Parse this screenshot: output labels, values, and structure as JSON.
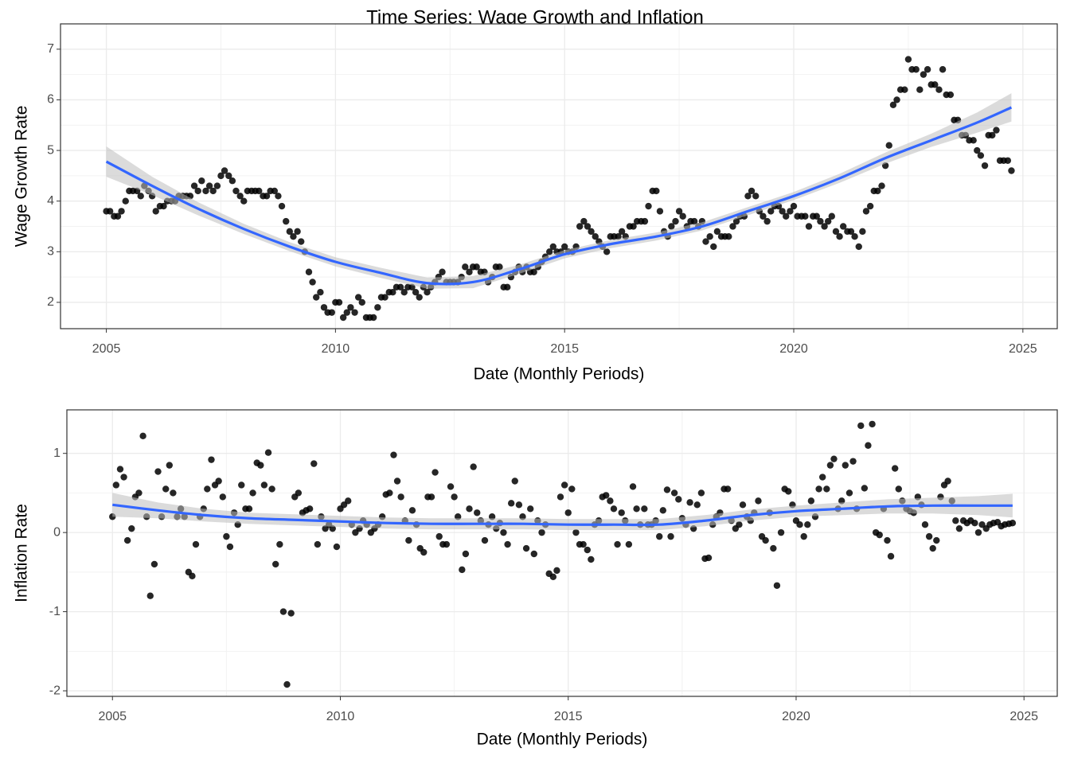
{
  "title": "Time Series: Wage Growth and Inflation",
  "chart_data": [
    {
      "type": "scatter",
      "ylabel": "Wage Growth Rate",
      "xlabel": "Date (Monthly Periods)",
      "point_color": "#000000",
      "grid": true,
      "xlim": [
        2004,
        2025.75
      ],
      "ylim": [
        1.48,
        7.5
      ],
      "xticks": [
        2005,
        2010,
        2015,
        2020,
        2025
      ],
      "yticks": [
        2,
        3,
        4,
        5,
        6,
        7
      ],
      "x": [
        2005,
        2005.08,
        2005.17,
        2005.25,
        2005.33,
        2005.42,
        2005.5,
        2005.58,
        2005.67,
        2005.75,
        2005.83,
        2005.92,
        2006,
        2006.08,
        2006.17,
        2006.25,
        2006.33,
        2006.42,
        2006.5,
        2006.58,
        2006.67,
        2006.75,
        2006.83,
        2006.92,
        2007,
        2007.08,
        2007.17,
        2007.25,
        2007.33,
        2007.42,
        2007.5,
        2007.58,
        2007.67,
        2007.75,
        2007.83,
        2007.92,
        2008,
        2008.08,
        2008.17,
        2008.25,
        2008.33,
        2008.42,
        2008.5,
        2008.58,
        2008.67,
        2008.75,
        2008.83,
        2008.92,
        2009,
        2009.08,
        2009.17,
        2009.25,
        2009.33,
        2009.42,
        2009.5,
        2009.58,
        2009.67,
        2009.75,
        2009.83,
        2009.92,
        2010,
        2010.08,
        2010.17,
        2010.25,
        2010.33,
        2010.42,
        2010.5,
        2010.58,
        2010.67,
        2010.75,
        2010.83,
        2010.92,
        2011,
        2011.08,
        2011.17,
        2011.25,
        2011.33,
        2011.42,
        2011.5,
        2011.58,
        2011.67,
        2011.75,
        2011.83,
        2011.92,
        2012,
        2012.08,
        2012.17,
        2012.25,
        2012.33,
        2012.42,
        2012.5,
        2012.58,
        2012.67,
        2012.75,
        2012.83,
        2012.92,
        2013,
        2013.08,
        2013.17,
        2013.25,
        2013.33,
        2013.42,
        2013.5,
        2013.58,
        2013.67,
        2013.75,
        2013.83,
        2013.92,
        2014,
        2014.08,
        2014.17,
        2014.25,
        2014.33,
        2014.42,
        2014.5,
        2014.58,
        2014.67,
        2014.75,
        2014.83,
        2014.92,
        2015,
        2015.08,
        2015.17,
        2015.25,
        2015.33,
        2015.42,
        2015.5,
        2015.58,
        2015.67,
        2015.75,
        2015.83,
        2015.92,
        2016,
        2016.08,
        2016.17,
        2016.25,
        2016.33,
        2016.42,
        2016.5,
        2016.58,
        2016.67,
        2016.75,
        2016.83,
        2016.92,
        2017,
        2017.08,
        2017.17,
        2017.25,
        2017.33,
        2017.42,
        2017.5,
        2017.58,
        2017.67,
        2017.75,
        2017.83,
        2017.92,
        2018,
        2018.08,
        2018.17,
        2018.25,
        2018.33,
        2018.42,
        2018.5,
        2018.58,
        2018.67,
        2018.75,
        2018.83,
        2018.92,
        2019,
        2019.08,
        2019.17,
        2019.25,
        2019.33,
        2019.42,
        2019.5,
        2019.58,
        2019.67,
        2019.75,
        2019.83,
        2019.92,
        2020,
        2020.08,
        2020.17,
        2020.25,
        2020.33,
        2020.42,
        2020.5,
        2020.58,
        2020.67,
        2020.75,
        2020.83,
        2020.92,
        2021,
        2021.08,
        2021.17,
        2021.25,
        2021.33,
        2021.42,
        2021.5,
        2021.58,
        2021.67,
        2021.75,
        2021.83,
        2021.92,
        2022,
        2022.08,
        2022.17,
        2022.25,
        2022.33,
        2022.42,
        2022.5,
        2022.58,
        2022.67,
        2022.75,
        2022.83,
        2022.92,
        2023,
        2023.08,
        2023.17,
        2023.25,
        2023.33,
        2023.42,
        2023.5,
        2023.58,
        2023.67,
        2023.75,
        2023.83,
        2023.92,
        2024,
        2024.08,
        2024.17,
        2024.25,
        2024.33,
        2024.42,
        2024.5,
        2024.58,
        2024.67,
        2024.75
      ],
      "values": [
        3.8,
        3.8,
        3.7,
        3.7,
        3.8,
        4.0,
        4.2,
        4.2,
        4.2,
        4.1,
        4.3,
        4.2,
        4.1,
        3.8,
        3.9,
        3.9,
        4.0,
        4.0,
        4.0,
        4.1,
        4.1,
        4.1,
        4.1,
        4.3,
        4.2,
        4.4,
        4.2,
        4.3,
        4.2,
        4.3,
        4.5,
        4.6,
        4.5,
        4.4,
        4.2,
        4.1,
        4.0,
        4.2,
        4.2,
        4.2,
        4.2,
        4.1,
        4.1,
        4.2,
        4.2,
        4.1,
        3.9,
        3.6,
        3.4,
        3.3,
        3.4,
        3.2,
        3.0,
        2.6,
        2.4,
        2.1,
        2.2,
        1.9,
        1.8,
        1.8,
        2.0,
        2.0,
        1.7,
        1.8,
        1.9,
        1.8,
        2.1,
        2.0,
        1.7,
        1.7,
        1.7,
        1.9,
        2.1,
        2.1,
        2.2,
        2.2,
        2.3,
        2.3,
        2.2,
        2.3,
        2.3,
        2.2,
        2.1,
        2.3,
        2.2,
        2.3,
        2.4,
        2.5,
        2.6,
        2.4,
        2.4,
        2.4,
        2.4,
        2.5,
        2.7,
        2.6,
        2.7,
        2.7,
        2.6,
        2.6,
        2.4,
        2.5,
        2.7,
        2.7,
        2.3,
        2.3,
        2.5,
        2.6,
        2.7,
        2.6,
        2.7,
        2.6,
        2.6,
        2.7,
        2.8,
        2.9,
        3.0,
        3.1,
        3.0,
        3.0,
        3.1,
        3.0,
        3.0,
        3.1,
        3.5,
        3.6,
        3.5,
        3.4,
        3.3,
        3.2,
        3.1,
        3.0,
        3.3,
        3.3,
        3.3,
        3.4,
        3.3,
        3.5,
        3.5,
        3.6,
        3.6,
        3.6,
        3.9,
        4.2,
        4.2,
        3.8,
        3.4,
        3.3,
        3.5,
        3.6,
        3.8,
        3.7,
        3.5,
        3.6,
        3.6,
        3.5,
        3.6,
        3.2,
        3.3,
        3.1,
        3.4,
        3.3,
        3.3,
        3.3,
        3.5,
        3.6,
        3.7,
        3.7,
        4.1,
        4.2,
        4.1,
        3.8,
        3.7,
        3.6,
        3.8,
        3.9,
        3.9,
        3.8,
        3.7,
        3.8,
        3.9,
        3.7,
        3.7,
        3.7,
        3.5,
        3.7,
        3.7,
        3.6,
        3.5,
        3.6,
        3.7,
        3.4,
        3.3,
        3.5,
        3.4,
        3.4,
        3.3,
        3.1,
        3.4,
        3.8,
        3.9,
        4.2,
        4.2,
        4.3,
        4.7,
        5.1,
        5.9,
        6.0,
        6.2,
        6.2,
        6.8,
        6.6,
        6.6,
        6.2,
        6.5,
        6.6,
        6.3,
        6.3,
        6.2,
        6.6,
        6.1,
        6.1,
        5.6,
        5.6,
        5.3,
        5.3,
        5.2,
        5.2,
        5.0,
        4.9,
        4.7,
        5.3,
        5.3,
        5.4,
        4.8,
        4.8,
        4.8,
        4.6
      ],
      "trend": {
        "color": "#3366ff",
        "band_color": "#bdbdbd",
        "x": [
          2005,
          2006,
          2007,
          2008,
          2009,
          2010,
          2011,
          2012,
          2013,
          2014,
          2015,
          2016,
          2017,
          2018,
          2019,
          2020,
          2021,
          2022,
          2023,
          2024,
          2024.75
        ],
        "values": [
          4.78,
          4.3,
          3.85,
          3.45,
          3.1,
          2.8,
          2.58,
          2.38,
          2.4,
          2.65,
          2.95,
          3.15,
          3.3,
          3.5,
          3.8,
          4.1,
          4.45,
          4.85,
          5.2,
          5.55,
          5.85
        ],
        "lower": [
          4.48,
          4.12,
          3.72,
          3.35,
          3.01,
          2.71,
          2.48,
          2.27,
          2.28,
          2.56,
          2.87,
          3.07,
          3.22,
          3.42,
          3.72,
          4.02,
          4.36,
          4.74,
          5.07,
          5.35,
          5.57
        ],
        "upper": [
          5.08,
          4.48,
          3.98,
          3.55,
          3.19,
          2.89,
          2.68,
          2.49,
          2.52,
          2.74,
          3.03,
          3.23,
          3.38,
          3.58,
          3.88,
          4.18,
          4.54,
          4.96,
          5.33,
          5.75,
          6.13
        ]
      }
    },
    {
      "type": "scatter",
      "ylabel": "Inflation Rate",
      "xlabel": "Date (Monthly Periods)",
      "point_color": "#000000",
      "grid": true,
      "xlim": [
        2004,
        2025.73
      ],
      "ylim": [
        -2.07,
        1.55
      ],
      "xticks": [
        2005,
        2010,
        2015,
        2020,
        2025
      ],
      "yticks": [
        -2,
        -1,
        0,
        1
      ],
      "x": [
        2005,
        2005.08,
        2005.17,
        2005.25,
        2005.33,
        2005.42,
        2005.5,
        2005.58,
        2005.67,
        2005.75,
        2005.83,
        2005.92,
        2006,
        2006.08,
        2006.17,
        2006.25,
        2006.33,
        2006.42,
        2006.5,
        2006.58,
        2006.67,
        2006.75,
        2006.83,
        2006.92,
        2007,
        2007.08,
        2007.17,
        2007.25,
        2007.33,
        2007.42,
        2007.5,
        2007.58,
        2007.67,
        2007.75,
        2007.83,
        2007.92,
        2008,
        2008.08,
        2008.17,
        2008.25,
        2008.33,
        2008.42,
        2008.5,
        2008.58,
        2008.67,
        2008.75,
        2008.83,
        2008.92,
        2009,
        2009.08,
        2009.17,
        2009.25,
        2009.33,
        2009.42,
        2009.5,
        2009.58,
        2009.67,
        2009.75,
        2009.83,
        2009.92,
        2010,
        2010.08,
        2010.17,
        2010.25,
        2010.33,
        2010.42,
        2010.5,
        2010.58,
        2010.67,
        2010.75,
        2010.83,
        2010.92,
        2011,
        2011.08,
        2011.17,
        2011.25,
        2011.33,
        2011.42,
        2011.5,
        2011.58,
        2011.67,
        2011.75,
        2011.83,
        2011.92,
        2012,
        2012.08,
        2012.17,
        2012.25,
        2012.33,
        2012.42,
        2012.5,
        2012.58,
        2012.67,
        2012.75,
        2012.83,
        2012.92,
        2013,
        2013.08,
        2013.17,
        2013.25,
        2013.33,
        2013.42,
        2013.5,
        2013.58,
        2013.67,
        2013.75,
        2013.83,
        2013.92,
        2014,
        2014.08,
        2014.17,
        2014.25,
        2014.33,
        2014.42,
        2014.5,
        2014.58,
        2014.67,
        2014.75,
        2014.83,
        2014.92,
        2015,
        2015.08,
        2015.17,
        2015.25,
        2015.33,
        2015.42,
        2015.5,
        2015.58,
        2015.67,
        2015.75,
        2015.83,
        2015.92,
        2016,
        2016.08,
        2016.17,
        2016.25,
        2016.33,
        2016.42,
        2016.5,
        2016.58,
        2016.67,
        2016.75,
        2016.83,
        2016.92,
        2017,
        2017.08,
        2017.17,
        2017.25,
        2017.33,
        2017.42,
        2017.5,
        2017.58,
        2017.67,
        2017.75,
        2017.83,
        2017.92,
        2018,
        2018.08,
        2018.17,
        2018.25,
        2018.33,
        2018.42,
        2018.5,
        2018.58,
        2018.67,
        2018.75,
        2018.83,
        2018.92,
        2019,
        2019.08,
        2019.17,
        2019.25,
        2019.33,
        2019.42,
        2019.5,
        2019.58,
        2019.67,
        2019.75,
        2019.83,
        2019.92,
        2020,
        2020.08,
        2020.17,
        2020.25,
        2020.33,
        2020.42,
        2020.5,
        2020.58,
        2020.67,
        2020.75,
        2020.83,
        2020.92,
        2021,
        2021.08,
        2021.17,
        2021.25,
        2021.33,
        2021.42,
        2021.5,
        2021.58,
        2021.67,
        2021.75,
        2021.83,
        2021.92,
        2022,
        2022.08,
        2022.17,
        2022.25,
        2022.33,
        2022.42,
        2022.5,
        2022.58,
        2022.67,
        2022.75,
        2022.83,
        2022.92,
        2023,
        2023.08,
        2023.17,
        2023.25,
        2023.33,
        2023.42,
        2023.5,
        2023.58,
        2023.67,
        2023.75,
        2023.83,
        2023.92,
        2024,
        2024.08,
        2024.17,
        2024.25,
        2024.33,
        2024.42,
        2024.5,
        2024.58,
        2024.67,
        2024.75
      ],
      "values": [
        0.2,
        0.6,
        0.8,
        0.7,
        -0.1,
        0.05,
        0.45,
        0.5,
        1.22,
        0.2,
        -0.8,
        -0.4,
        0.77,
        0.2,
        0.55,
        0.85,
        0.5,
        0.2,
        0.3,
        0.2,
        -0.5,
        -0.55,
        -0.15,
        0.2,
        0.3,
        0.55,
        0.92,
        0.6,
        0.65,
        0.45,
        -0.05,
        -0.18,
        0.25,
        0.1,
        0.6,
        0.3,
        0.3,
        0.5,
        0.88,
        0.85,
        0.6,
        1.01,
        0.55,
        -0.4,
        -0.15,
        -1.0,
        -1.92,
        -1.02,
        0.45,
        0.5,
        0.25,
        0.28,
        0.3,
        0.87,
        -0.15,
        0.2,
        0.05,
        0.1,
        0.05,
        -0.18,
        0.3,
        0.35,
        0.4,
        0.1,
        0.0,
        0.05,
        0.15,
        0.1,
        0.0,
        0.05,
        0.1,
        0.2,
        0.48,
        0.5,
        0.98,
        0.65,
        0.45,
        0.15,
        -0.1,
        0.28,
        0.1,
        -0.2,
        -0.25,
        0.45,
        0.45,
        0.76,
        -0.05,
        -0.15,
        -0.15,
        0.58,
        0.45,
        0.2,
        -0.47,
        -0.27,
        0.3,
        0.83,
        0.25,
        0.15,
        -0.1,
        0.1,
        0.2,
        0.05,
        0.12,
        0.0,
        -0.15,
        0.37,
        0.65,
        0.35,
        0.2,
        -0.2,
        0.3,
        -0.27,
        0.15,
        0.0,
        0.1,
        -0.52,
        -0.56,
        -0.48,
        0.45,
        0.6,
        0.25,
        0.55,
        0.0,
        -0.15,
        -0.15,
        -0.22,
        -0.34,
        0.1,
        0.15,
        0.45,
        0.47,
        0.4,
        0.3,
        -0.15,
        0.25,
        0.15,
        -0.15,
        0.58,
        0.3,
        0.1,
        0.3,
        0.1,
        0.1,
        0.15,
        -0.05,
        0.28,
        0.54,
        -0.05,
        0.5,
        0.42,
        0.18,
        0.1,
        0.38,
        0.05,
        0.35,
        0.5,
        -0.33,
        -0.32,
        0.1,
        0.2,
        0.25,
        0.55,
        0.55,
        0.15,
        0.05,
        0.1,
        0.35,
        0.2,
        0.15,
        0.25,
        0.4,
        -0.05,
        -0.1,
        0.25,
        -0.2,
        -0.67,
        0.0,
        0.55,
        0.52,
        0.35,
        0.15,
        0.1,
        -0.05,
        0.1,
        0.4,
        0.2,
        0.55,
        0.7,
        0.55,
        0.85,
        0.93,
        0.3,
        0.4,
        0.85,
        0.5,
        0.9,
        0.3,
        1.35,
        0.56,
        1.1,
        1.37,
        0.0,
        -0.03,
        0.3,
        -0.1,
        -0.3,
        0.81,
        0.55,
        0.4,
        0.3,
        0.27,
        0.25,
        0.45,
        0.35,
        0.1,
        -0.05,
        -0.2,
        -0.1,
        0.45,
        0.6,
        0.65,
        0.4,
        0.15,
        0.05,
        0.15,
        0.12,
        0.15,
        0.12,
        0.0,
        0.1,
        0.05,
        0.1,
        0.12,
        0.13,
        0.08,
        0.1,
        0.11,
        0.12
      ],
      "trend": {
        "color": "#3366ff",
        "band_color": "#bdbdbd",
        "x": [
          2005,
          2006,
          2007,
          2008,
          2009,
          2010,
          2011,
          2012,
          2013,
          2014,
          2015,
          2016,
          2017,
          2018,
          2019,
          2020,
          2021,
          2022,
          2023,
          2024,
          2024.75
        ],
        "values": [
          0.35,
          0.28,
          0.22,
          0.18,
          0.16,
          0.14,
          0.12,
          0.11,
          0.11,
          0.11,
          0.1,
          0.1,
          0.1,
          0.15,
          0.22,
          0.27,
          0.3,
          0.33,
          0.34,
          0.34,
          0.34
        ],
        "lower": [
          0.2,
          0.18,
          0.14,
          0.11,
          0.09,
          0.07,
          0.05,
          0.04,
          0.04,
          0.04,
          0.03,
          0.03,
          0.03,
          0.08,
          0.15,
          0.2,
          0.22,
          0.24,
          0.24,
          0.22,
          0.19
        ],
        "upper": [
          0.5,
          0.38,
          0.3,
          0.25,
          0.23,
          0.21,
          0.19,
          0.18,
          0.18,
          0.18,
          0.17,
          0.17,
          0.17,
          0.22,
          0.29,
          0.34,
          0.38,
          0.42,
          0.44,
          0.46,
          0.49
        ]
      }
    }
  ]
}
